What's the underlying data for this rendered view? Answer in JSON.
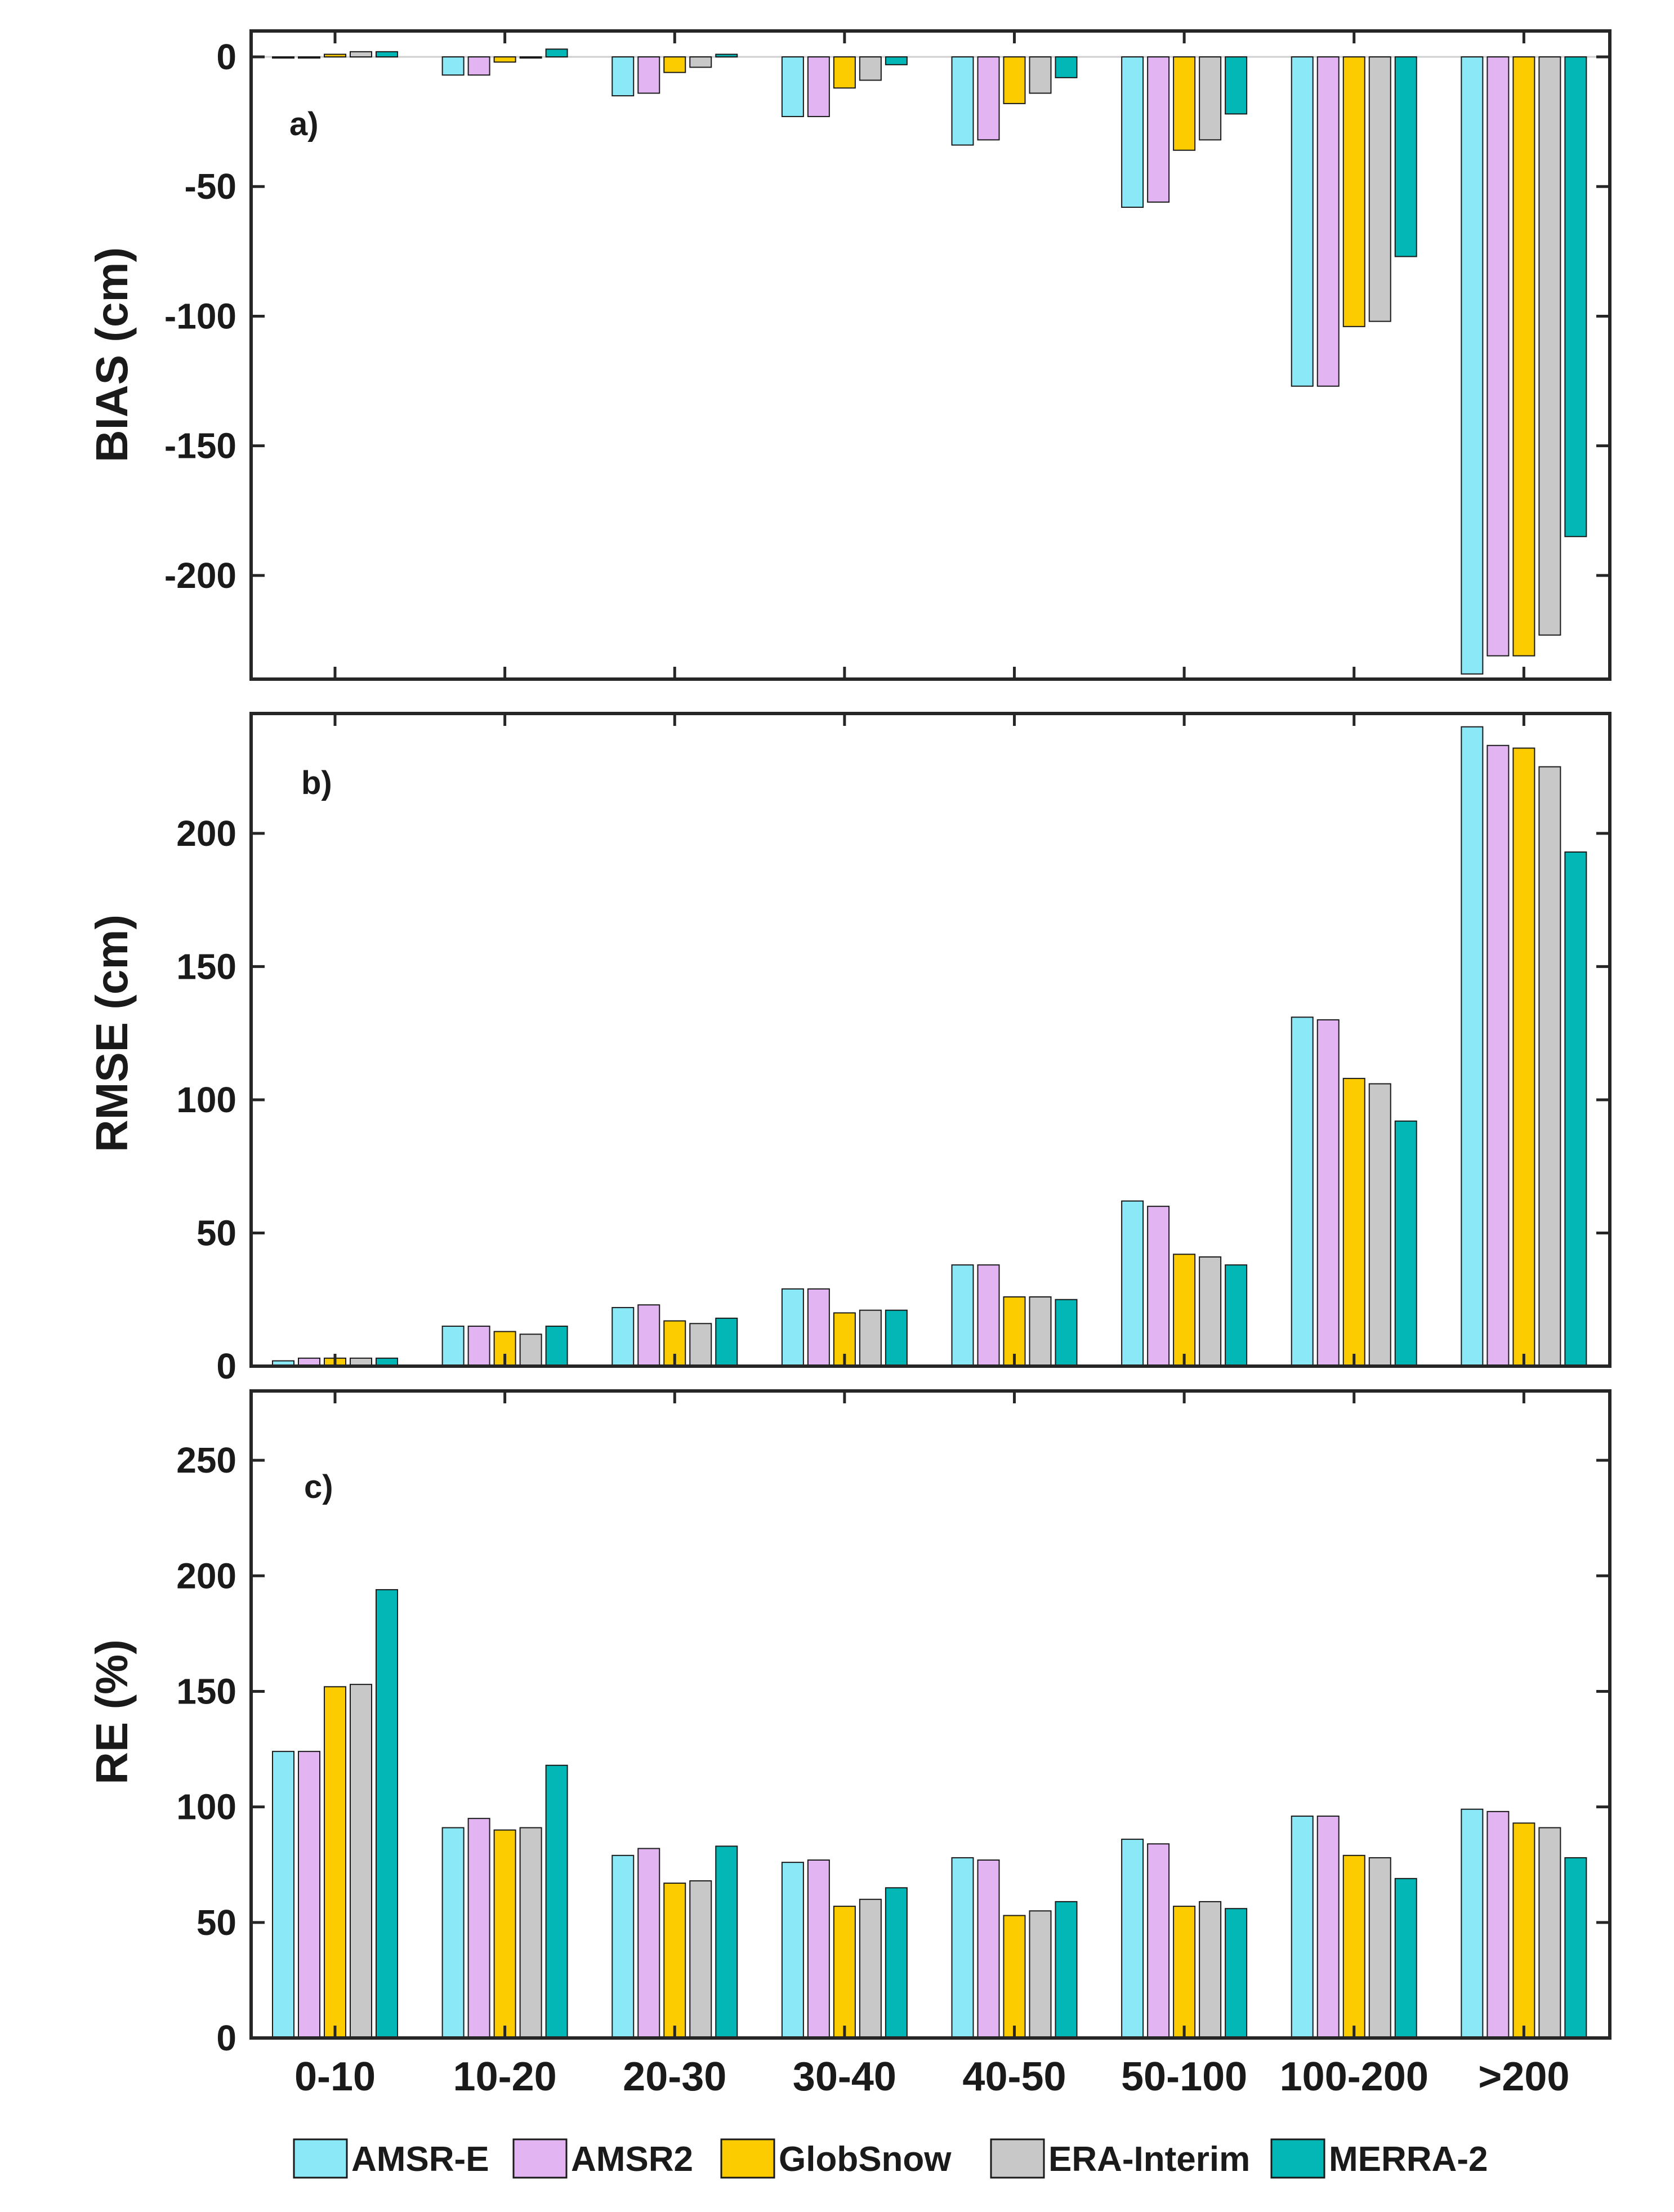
{
  "chart_data": [
    {
      "type": "bar",
      "panel_label": "a)",
      "ylabel": "BIAS (cm)",
      "ylim": [
        -240,
        10
      ],
      "yticks": [
        0,
        -50,
        -100,
        -150,
        -200
      ],
      "categories": [
        "0-10",
        "10-20",
        "20-30",
        "30-40",
        "40-50",
        "50-100",
        "100-200",
        ">200"
      ],
      "series": [
        {
          "name": "AMSR-E",
          "values": [
            0,
            -7,
            -15,
            -23,
            -34,
            -58,
            -127,
            -238
          ]
        },
        {
          "name": "AMSR2",
          "values": [
            0,
            -7,
            -14,
            -23,
            -32,
            -56,
            -127,
            -231
          ]
        },
        {
          "name": "GlobSnow",
          "values": [
            1,
            -2,
            -6,
            -12,
            -18,
            -36,
            -104,
            -231
          ]
        },
        {
          "name": "ERA-Interim",
          "values": [
            2,
            0,
            -4,
            -9,
            -14,
            -32,
            -102,
            -223
          ]
        },
        {
          "name": "MERRA-2",
          "values": [
            2,
            3,
            1,
            -3,
            -8,
            -22,
            -77,
            -185
          ]
        }
      ]
    },
    {
      "type": "bar",
      "panel_label": "b)",
      "ylabel": "RMSE (cm)",
      "ylim": [
        0,
        245
      ],
      "yticks": [
        0,
        50,
        100,
        150,
        200
      ],
      "categories": [
        "0-10",
        "10-20",
        "20-30",
        "30-40",
        "40-50",
        "50-100",
        "100-200",
        ">200"
      ],
      "series": [
        {
          "name": "AMSR-E",
          "values": [
            2,
            15,
            22,
            29,
            38,
            62,
            131,
            240
          ]
        },
        {
          "name": "AMSR2",
          "values": [
            3,
            15,
            23,
            29,
            38,
            60,
            130,
            233
          ]
        },
        {
          "name": "GlobSnow",
          "values": [
            3,
            13,
            17,
            20,
            26,
            42,
            108,
            232
          ]
        },
        {
          "name": "ERA-Interim",
          "values": [
            3,
            12,
            16,
            21,
            26,
            41,
            106,
            225
          ]
        },
        {
          "name": "MERRA-2",
          "values": [
            3,
            15,
            18,
            21,
            25,
            38,
            92,
            193
          ]
        }
      ]
    },
    {
      "type": "bar",
      "panel_label": "c)",
      "ylabel": "RE (%)",
      "ylim": [
        0,
        280
      ],
      "yticks": [
        0,
        50,
        100,
        150,
        200,
        250
      ],
      "categories": [
        "0-10",
        "10-20",
        "20-30",
        "30-40",
        "40-50",
        "50-100",
        "100-200",
        ">200"
      ],
      "series": [
        {
          "name": "AMSR-E",
          "values": [
            124,
            91,
            79,
            76,
            78,
            86,
            96,
            99
          ]
        },
        {
          "name": "AMSR2",
          "values": [
            124,
            95,
            82,
            77,
            77,
            84,
            96,
            98
          ]
        },
        {
          "name": "GlobSnow",
          "values": [
            152,
            90,
            67,
            57,
            53,
            57,
            79,
            93
          ]
        },
        {
          "name": "ERA-Interim",
          "values": [
            153,
            91,
            68,
            60,
            55,
            59,
            78,
            91
          ]
        },
        {
          "name": "MERRA-2",
          "values": [
            194,
            118,
            83,
            65,
            59,
            56,
            69,
            78
          ]
        }
      ]
    }
  ],
  "legend": {
    "placement": "bottom-center",
    "entries": [
      {
        "name": "AMSR-E",
        "color": "#8be8f6"
      },
      {
        "name": "AMSR2",
        "color": "#e2b5f2"
      },
      {
        "name": "GlobSnow",
        "color": "#fccc00"
      },
      {
        "name": "ERA-Interim",
        "color": "#c8c8c8"
      },
      {
        "name": "MERRA-2",
        "color": "#03b7b7"
      }
    ]
  }
}
